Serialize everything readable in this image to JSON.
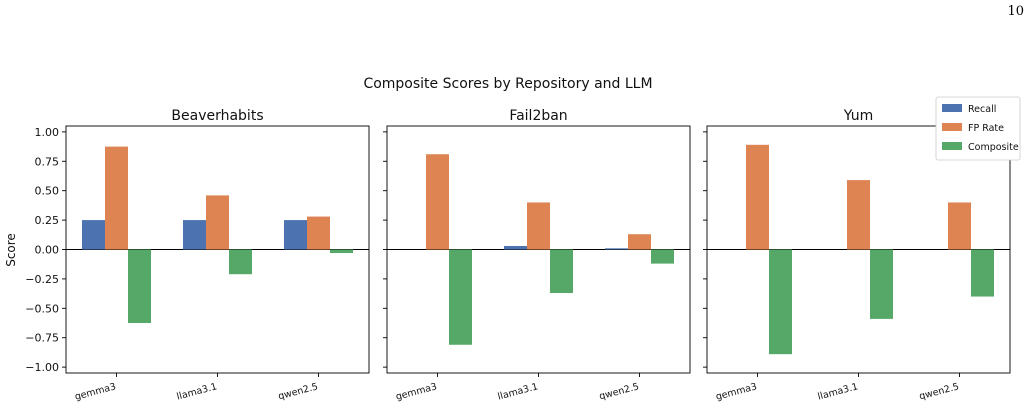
{
  "page_number": "10",
  "chart_data": {
    "type": "bar",
    "title": "Composite Scores by Repository and LLM",
    "ylabel": "Score",
    "ylim": [
      -1.05,
      1.05
    ],
    "yticks": [
      1.0,
      0.75,
      0.5,
      0.25,
      0.0,
      -0.25,
      -0.5,
      -0.75,
      -1.0
    ],
    "ytick_labels": [
      "1.00",
      "0.75",
      "0.50",
      "0.25",
      "0.00",
      "−0.25",
      "−0.50",
      "−0.75",
      "−1.00"
    ],
    "grid": false,
    "legend_position": "top-right",
    "series_colors": {
      "Recall": "#4c72b0",
      "FP Rate": "#dd8452",
      "Composite": "#55a868"
    },
    "legend": [
      "Recall",
      "FP Rate",
      "Composite"
    ],
    "panels": [
      {
        "title": "Beaverhabits",
        "categories": [
          "gemma3",
          "llama3.1",
          "qwen2.5"
        ],
        "series": [
          {
            "name": "Recall",
            "values": [
              0.25,
              0.25,
              0.25
            ]
          },
          {
            "name": "FP Rate",
            "values": [
              0.875,
              0.46,
              0.28
            ]
          },
          {
            "name": "Composite",
            "values": [
              -0.625,
              -0.21,
              -0.03
            ]
          }
        ]
      },
      {
        "title": "Fail2ban",
        "categories": [
          "gemma3",
          "llama3.1",
          "qwen2.5"
        ],
        "series": [
          {
            "name": "Recall",
            "values": [
              0.0,
              0.03,
              0.01
            ]
          },
          {
            "name": "FP Rate",
            "values": [
              0.81,
              0.4,
              0.13
            ]
          },
          {
            "name": "Composite",
            "values": [
              -0.81,
              -0.37,
              -0.12
            ]
          }
        ]
      },
      {
        "title": "Yum",
        "categories": [
          "gemma3",
          "llama3.1",
          "qwen2.5"
        ],
        "series": [
          {
            "name": "Recall",
            "values": [
              0.0,
              0.0,
              0.0
            ]
          },
          {
            "name": "FP Rate",
            "values": [
              0.89,
              0.59,
              0.4
            ]
          },
          {
            "name": "Composite",
            "values": [
              -0.89,
              -0.59,
              -0.4
            ]
          }
        ]
      }
    ]
  }
}
